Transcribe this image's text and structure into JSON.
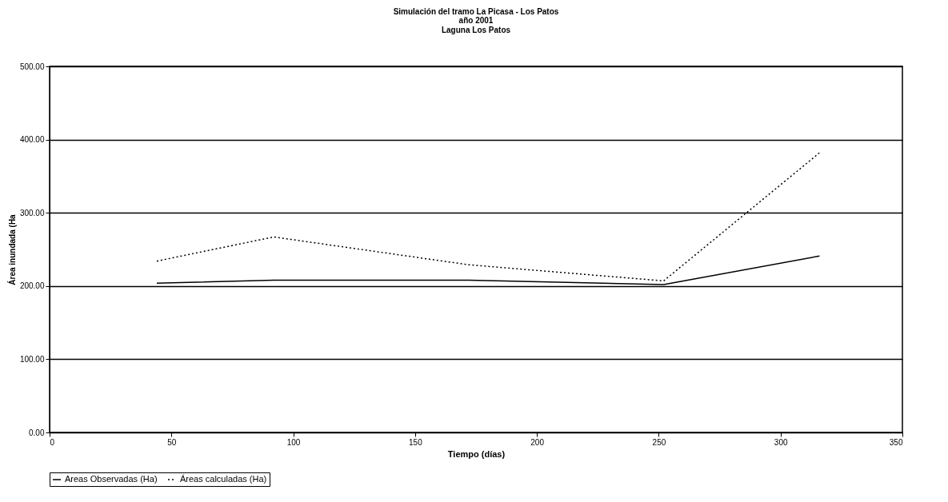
{
  "chart_data": {
    "type": "line",
    "title": "Simulación del tramo La Picasa - Los Patos",
    "subtitle": "año 2001\nLaguna Los Patos",
    "xlabel": "Tiempo (días)",
    "ylabel": "Área inundada (Ha",
    "x": [
      44,
      92,
      172,
      252,
      316
    ],
    "series": [
      {
        "name": "Areas Observadas (Ha)",
        "color": "#000000",
        "line_style": "solid",
        "values": [
          204,
          208,
          208,
          202,
          241
        ]
      },
      {
        "name": "Áreas calculadas (Ha)",
        "color": "#000000",
        "line_style": "dotted",
        "values": [
          234,
          267,
          229,
          207,
          382
        ]
      }
    ],
    "xlim": [
      0,
      350
    ],
    "xticks": [
      0,
      50,
      100,
      150,
      200,
      250,
      300,
      350
    ],
    "ylim": [
      0,
      500
    ],
    "yticks": [
      {
        "value": 0,
        "label": "0.00"
      },
      {
        "value": 100,
        "label": "100.00"
      },
      {
        "value": 200,
        "label": "200.00"
      },
      {
        "value": 300,
        "label": "300.00"
      },
      {
        "value": 400,
        "label": "400.00"
      },
      {
        "value": 500,
        "label": "500.00"
      }
    ],
    "grid": "y",
    "legend": "bottom",
    "marker": "none"
  }
}
